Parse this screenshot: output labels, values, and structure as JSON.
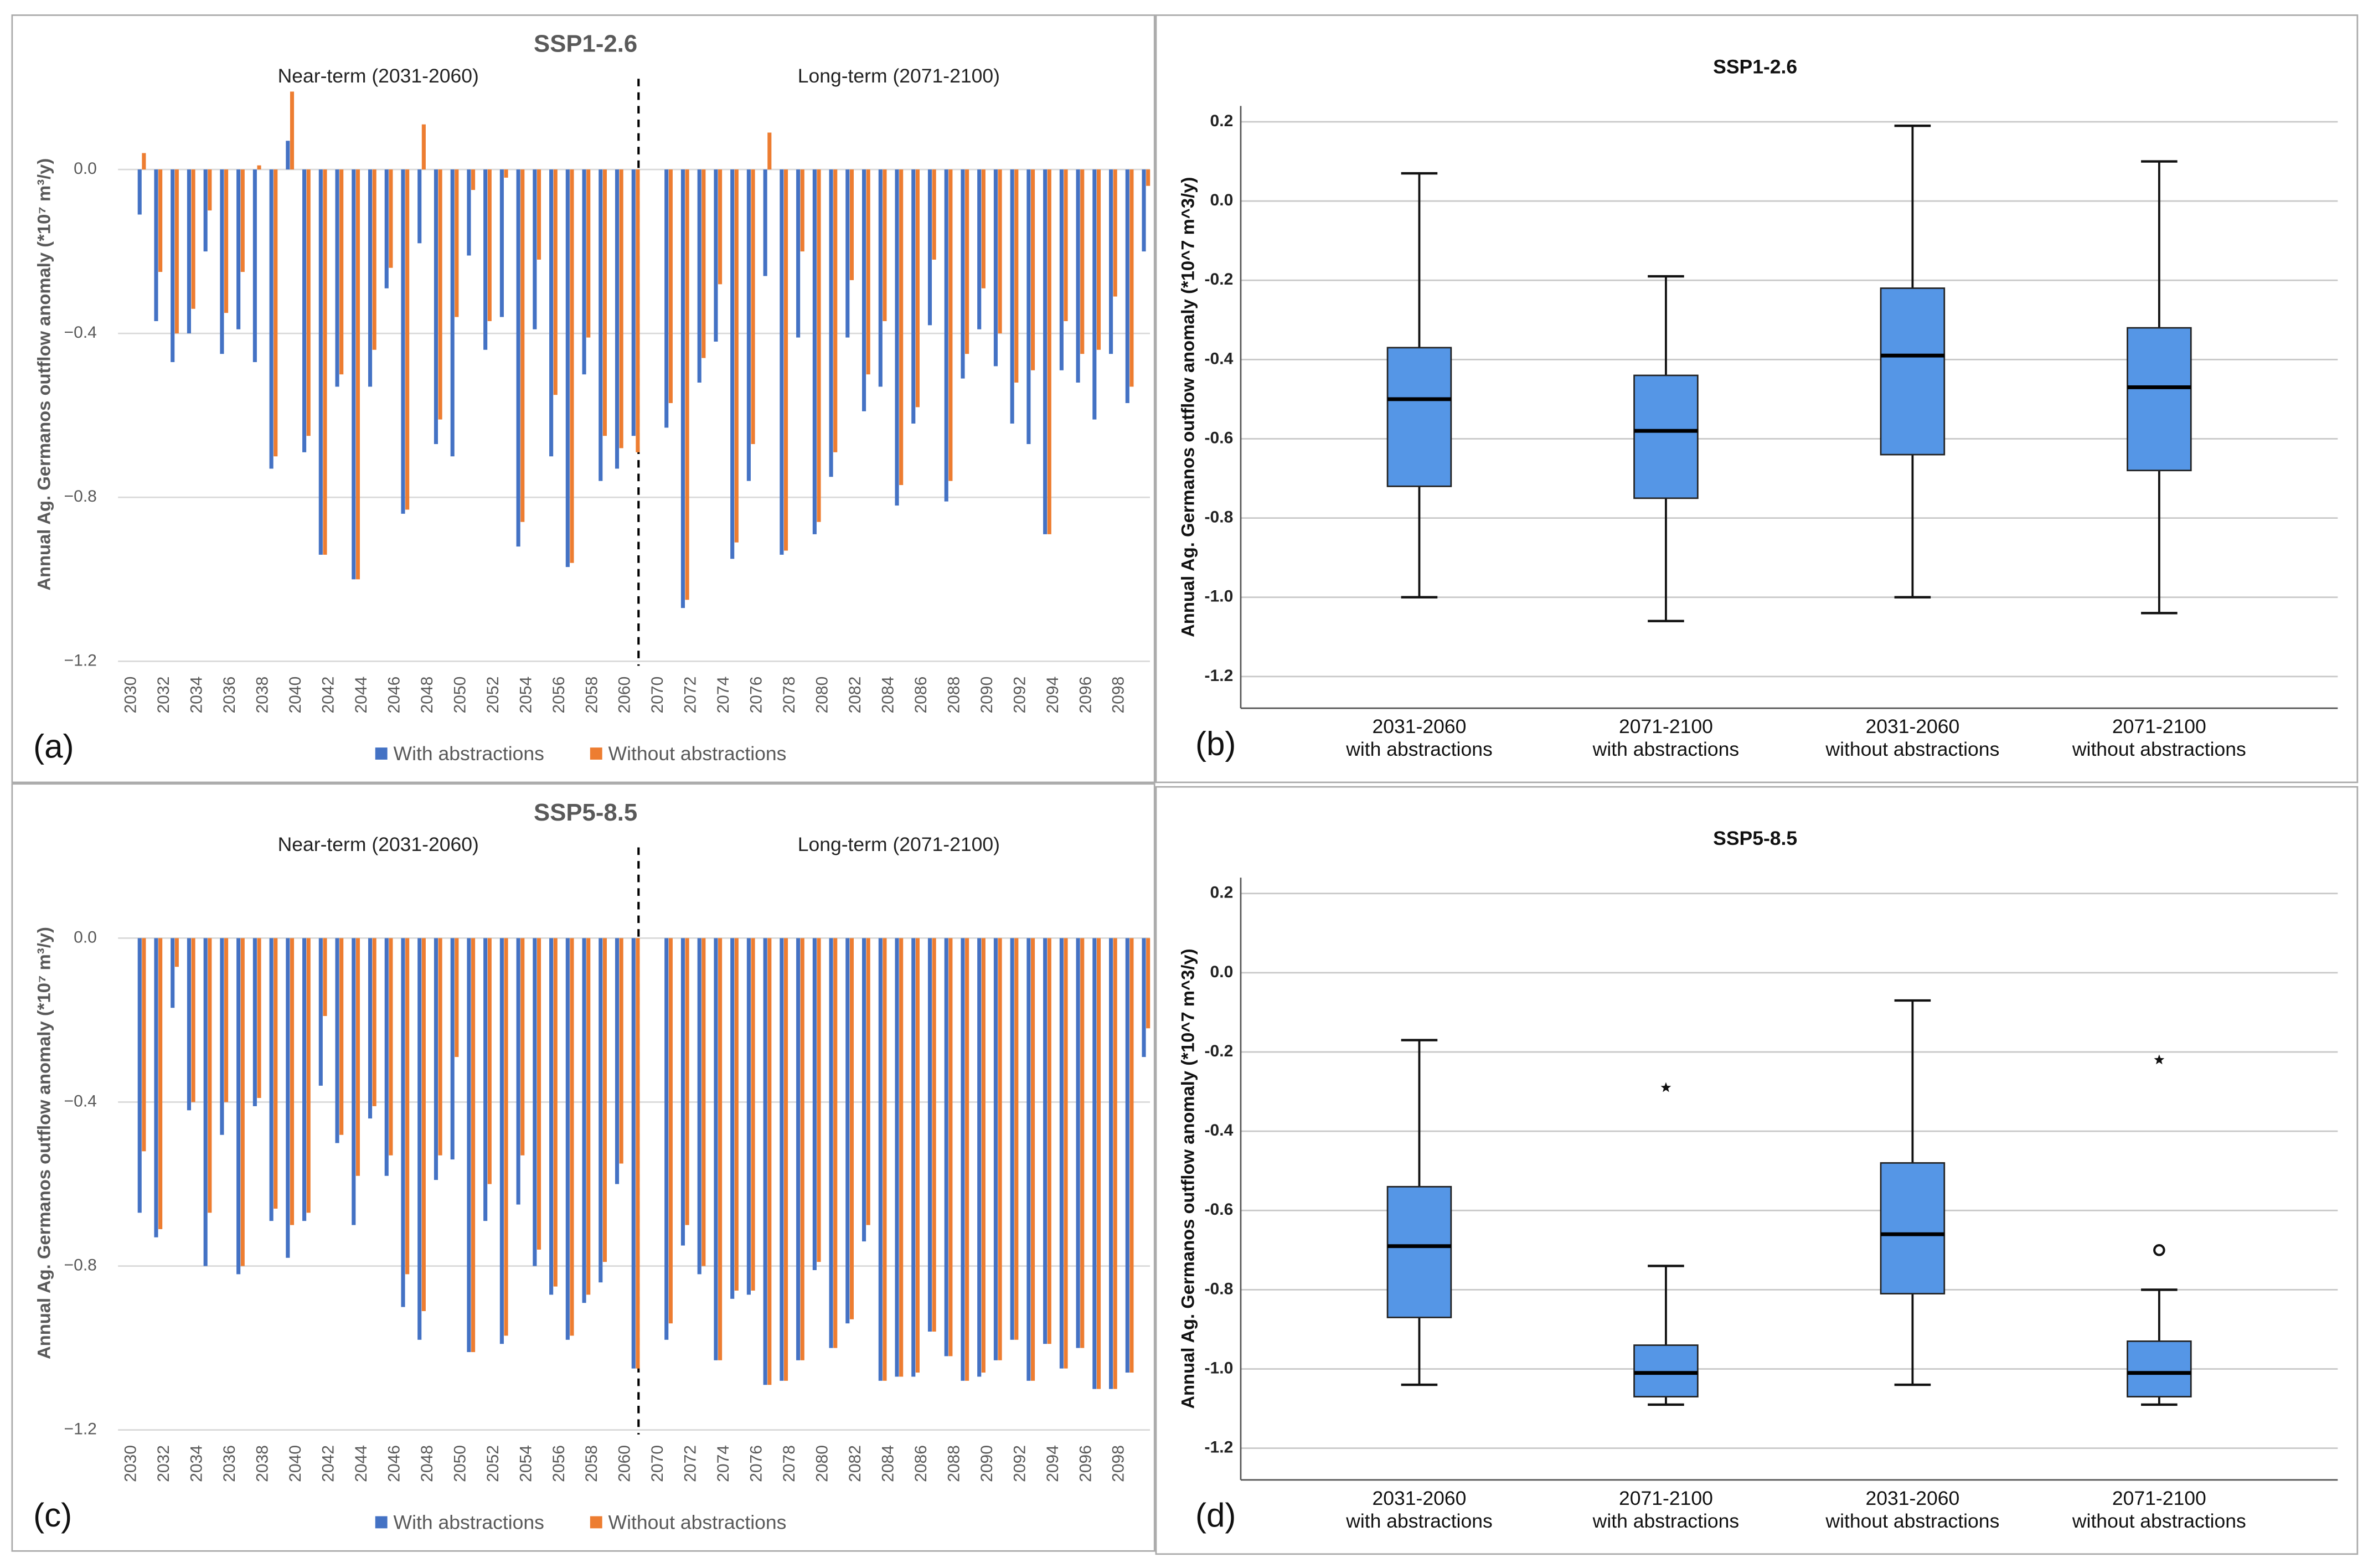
{
  "chart_data": [
    {
      "type": "bar",
      "panel": "(a)",
      "title": "SSP1-2.6",
      "annotations": [
        "Near-term (2031-2060)",
        "Long-term (2071-2100)"
      ],
      "y_label": "Annual Ag. Germanos outflow anomaly (*10⁷ m³/y)",
      "categories": [
        "2030",
        null,
        "2032",
        null,
        "2034",
        null,
        "2036",
        null,
        "2038",
        null,
        "2040",
        null,
        "2042",
        null,
        "2044",
        null,
        "2046",
        null,
        "2048",
        null,
        "2050",
        null,
        "2052",
        null,
        "2054",
        null,
        "2056",
        null,
        "2058",
        null,
        "2060",
        "2070",
        null,
        "2072",
        null,
        "2074",
        null,
        "2076",
        null,
        "2078",
        null,
        "2080",
        null,
        "2082",
        null,
        "2084",
        null,
        "2086",
        null,
        "2088",
        null,
        "2090",
        null,
        "2092",
        null,
        "2094",
        null,
        "2096",
        null,
        "2098",
        null
      ],
      "series": [
        {
          "name": "With abstractions",
          "color": "#4472c4",
          "values": [
            -0.11,
            -0.37,
            -0.47,
            -0.4,
            -0.2,
            -0.45,
            -0.39,
            -0.47,
            -0.73,
            0.07,
            -0.69,
            -0.94,
            -0.53,
            -1.0,
            -0.53,
            -0.29,
            -0.84,
            -0.18,
            -0.67,
            -0.7,
            -0.21,
            -0.44,
            -0.36,
            -0.92,
            -0.39,
            -0.7,
            -0.97,
            -0.5,
            -0.76,
            -0.73,
            -0.65,
            -0.63,
            -1.07,
            -0.52,
            -0.42,
            -0.95,
            -0.76,
            -0.26,
            -0.94,
            -0.41,
            -0.89,
            -0.75,
            -0.41,
            -0.59,
            -0.53,
            -0.82,
            -0.62,
            -0.38,
            -0.81,
            -0.51,
            -0.39,
            -0.48,
            -0.62,
            -0.67,
            -0.89,
            -0.49,
            -0.52,
            -0.61,
            -0.45,
            -0.57,
            -0.2
          ]
        },
        {
          "name": "Without abstractions",
          "color": "#ed7d31",
          "values": [
            0.04,
            -0.25,
            -0.4,
            -0.34,
            -0.1,
            -0.35,
            -0.25,
            0.01,
            -0.7,
            0.19,
            -0.65,
            -0.94,
            -0.5,
            -1.0,
            -0.44,
            -0.24,
            -0.83,
            0.11,
            -0.61,
            -0.36,
            -0.05,
            -0.37,
            -0.02,
            -0.86,
            -0.22,
            -0.55,
            -0.96,
            -0.41,
            -0.65,
            -0.68,
            -0.69,
            -0.57,
            -1.05,
            -0.46,
            -0.28,
            -0.91,
            -0.67,
            0.09,
            -0.93,
            -0.2,
            -0.86,
            -0.69,
            -0.27,
            -0.5,
            -0.37,
            -0.77,
            -0.58,
            -0.22,
            -0.76,
            -0.45,
            -0.29,
            -0.4,
            -0.52,
            -0.49,
            -0.89,
            -0.37,
            -0.45,
            -0.44,
            -0.31,
            -0.53,
            -0.04
          ]
        }
      ],
      "ylim": [
        -1.2,
        0.2
      ],
      "yticks": [
        {
          "value": 0,
          "label": "0.0"
        },
        {
          "value": -0.4,
          "label": "−0.4"
        },
        {
          "value": -0.8,
          "label": "−0.8"
        },
        {
          "value": -1.2,
          "label": "−1.2"
        }
      ],
      "grid": true,
      "legend": "bottom"
    },
    {
      "type": "box",
      "panel": "(b)",
      "title": "SSP1-2.6",
      "y_label": "Annual Ag. Germanos outflow anomaly (*10^7 m^3/y)",
      "categories": [
        [
          "2031-2060",
          "with abstractions"
        ],
        [
          "2071-2100",
          "with abstractions"
        ],
        [
          "2031-2060",
          "without abstractions"
        ],
        [
          "2071-2100",
          "without abstractions"
        ]
      ],
      "color": "#5596e6",
      "boxes": [
        {
          "min": -1.0,
          "q1": -0.72,
          "median": -0.5,
          "q3": -0.37,
          "max": 0.07
        },
        {
          "min": -1.06,
          "q1": -0.75,
          "median": -0.58,
          "q3": -0.44,
          "max": -0.19
        },
        {
          "min": -1.0,
          "q1": -0.64,
          "median": -0.39,
          "q3": -0.22,
          "max": 0.19
        },
        {
          "min": -1.04,
          "q1": -0.68,
          "median": -0.47,
          "q3": -0.32,
          "max": 0.1
        }
      ],
      "ylim": [
        -1.28,
        0.24
      ],
      "yticks": [
        0.2,
        {
          "value": 0,
          "label": "0.0"
        },
        -0.2,
        -0.4,
        -0.6,
        -0.8,
        {
          "value": -1,
          "label": "-1.0"
        },
        -1.2
      ],
      "grid": true
    },
    {
      "type": "bar",
      "panel": "(c)",
      "title": "SSP5-8.5",
      "annotations": [
        "Near-term (2031-2060)",
        "Long-term (2071-2100)"
      ],
      "y_label": "Annual Ag. Germanos outflow anomaly (*10⁷ m³/y)",
      "categories": [
        "2030",
        null,
        "2032",
        null,
        "2034",
        null,
        "2036",
        null,
        "2038",
        null,
        "2040",
        null,
        "2042",
        null,
        "2044",
        null,
        "2046",
        null,
        "2048",
        null,
        "2050",
        null,
        "2052",
        null,
        "2054",
        null,
        "2056",
        null,
        "2058",
        null,
        "2060",
        "2070",
        null,
        "2072",
        null,
        "2074",
        null,
        "2076",
        null,
        "2078",
        null,
        "2080",
        null,
        "2082",
        null,
        "2084",
        null,
        "2086",
        null,
        "2088",
        null,
        "2090",
        null,
        "2092",
        null,
        "2094",
        null,
        "2096",
        null,
        "2098",
        null
      ],
      "series": [
        {
          "name": "With abstractions",
          "color": "#4472c4",
          "values": [
            -0.67,
            -0.73,
            -0.17,
            -0.42,
            -0.8,
            -0.48,
            -0.82,
            -0.41,
            -0.69,
            -0.78,
            -0.69,
            -0.36,
            -0.5,
            -0.7,
            -0.44,
            -0.58,
            -0.9,
            -0.98,
            -0.59,
            -0.54,
            -1.01,
            -0.69,
            -0.99,
            -0.65,
            -0.8,
            -0.87,
            -0.98,
            -0.89,
            -0.84,
            -0.6,
            -1.05,
            -0.98,
            -0.75,
            -0.82,
            -1.03,
            -0.88,
            -0.87,
            -1.09,
            -1.08,
            -1.03,
            -0.81,
            -1.0,
            -0.94,
            -0.74,
            -1.08,
            -1.07,
            -1.07,
            -0.96,
            -1.02,
            -1.08,
            -1.07,
            -1.03,
            -0.98,
            -1.08,
            -0.99,
            -1.05,
            -1.0,
            -1.1,
            -1.1,
            -1.06,
            -0.29
          ]
        },
        {
          "name": "Without abstractions",
          "color": "#ed7d31",
          "values": [
            -0.52,
            -0.71,
            -0.07,
            -0.4,
            -0.67,
            -0.4,
            -0.8,
            -0.39,
            -0.66,
            -0.7,
            -0.67,
            -0.19,
            -0.48,
            -0.58,
            -0.41,
            -0.53,
            -0.82,
            -0.91,
            -0.53,
            -0.29,
            -1.01,
            -0.6,
            -0.97,
            -0.53,
            -0.76,
            -0.85,
            -0.97,
            -0.87,
            -0.79,
            -0.55,
            -1.05,
            -0.94,
            -0.7,
            -0.8,
            -1.03,
            -0.86,
            -0.86,
            -1.09,
            -1.08,
            -1.03,
            -0.79,
            -1.0,
            -0.93,
            -0.7,
            -1.08,
            -1.07,
            -1.06,
            -0.96,
            -1.02,
            -1.08,
            -1.06,
            -1.03,
            -0.98,
            -1.08,
            -0.99,
            -1.05,
            -1.0,
            -1.1,
            -1.1,
            -1.06,
            -0.22
          ]
        }
      ],
      "ylim": [
        -1.2,
        0.2
      ],
      "yticks": [
        {
          "value": 0,
          "label": "0.0"
        },
        {
          "value": -0.4,
          "label": "−0.4"
        },
        {
          "value": -0.8,
          "label": "−0.8"
        },
        {
          "value": -1.2,
          "label": "−1.2"
        }
      ],
      "grid": true,
      "legend": "bottom"
    },
    {
      "type": "box",
      "panel": "(d)",
      "title": "SSP5-8.5",
      "y_label": "Annual Ag. Germanos outflow anomaly (*10^7 m^3/y)",
      "categories": [
        [
          "2031-2060",
          "with abstractions"
        ],
        [
          "2071-2100",
          "with abstractions"
        ],
        [
          "2031-2060",
          "without abstractions"
        ],
        [
          "2071-2100",
          "without abstractions"
        ]
      ],
      "color": "#5596e6",
      "boxes": [
        {
          "min": -1.04,
          "q1": -0.87,
          "median": -0.69,
          "q3": -0.54,
          "max": -0.17
        },
        {
          "min": -1.09,
          "q1": -1.07,
          "median": -1.01,
          "q3": -0.94,
          "max": -0.74,
          "outliers": [
            {
              "value": -0.29,
              "marker": "star"
            }
          ]
        },
        {
          "min": -1.04,
          "q1": -0.81,
          "median": -0.66,
          "q3": -0.48,
          "max": -0.07
        },
        {
          "min": -1.09,
          "q1": -1.07,
          "median": -1.01,
          "q3": -0.93,
          "max": -0.8,
          "outliers": [
            {
              "value": -0.7,
              "marker": "circle"
            },
            {
              "value": -0.22,
              "marker": "star"
            }
          ]
        }
      ],
      "ylim": [
        -1.28,
        0.24
      ],
      "yticks": [
        0.2,
        {
          "value": 0,
          "label": "0.0"
        },
        -0.2,
        -0.4,
        -0.6,
        -0.8,
        {
          "value": -1,
          "label": "-1.0"
        },
        -1.2
      ],
      "grid": true
    }
  ]
}
